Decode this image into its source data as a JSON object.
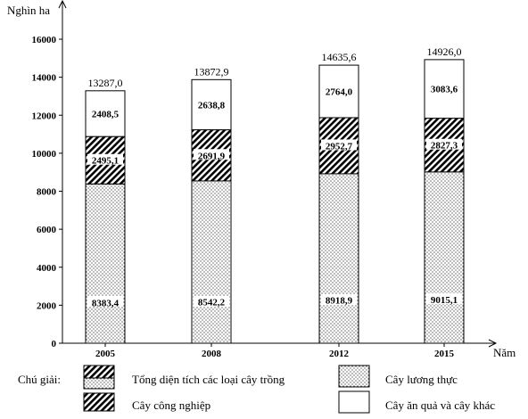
{
  "chart_data": {
    "type": "bar",
    "stacked": true,
    "categories": [
      "2005",
      "2008",
      "2012",
      "2015"
    ],
    "series": [
      {
        "name": "Cây lương thực",
        "values": [
          8383.4,
          8542.2,
          8918.9,
          9015.1
        ],
        "labels": [
          "8383,4",
          "8542,2",
          "8918,9",
          "9015,1"
        ],
        "pattern": "dots"
      },
      {
        "name": "Cây công nghiệp",
        "values": [
          2495.1,
          2691.9,
          2952.7,
          2827.3
        ],
        "labels": [
          "2495,1",
          "2691,9",
          "2952,7",
          "2827,3"
        ],
        "pattern": "diagonal-hatch"
      },
      {
        "name": "Cây ăn quả và cây khác",
        "values": [
          2408.5,
          2638.8,
          2764.0,
          3083.6
        ],
        "labels": [
          "2408,5",
          "2638,8",
          "2764,0",
          "3083,6"
        ],
        "pattern": "white"
      }
    ],
    "totals": [
      13287.0,
      13872.9,
      14635.6,
      14926.0
    ],
    "total_labels": [
      "13287,0",
      "13872,9",
      "14635,6",
      "14926,0"
    ],
    "total_series_name": "Tổng diện tích các loại cây trồng",
    "ylabel": "Nghìn ha",
    "xlabel": "Năm",
    "ylim": [
      0,
      16000
    ],
    "yticks": [
      0,
      2000,
      4000,
      6000,
      8000,
      10000,
      12000,
      14000,
      16000
    ],
    "grid": false,
    "legend": {
      "title": "Chú giải:",
      "position": "bottom"
    },
    "colors": {
      "ink": "#000000",
      "background": "#ffffff"
    }
  }
}
